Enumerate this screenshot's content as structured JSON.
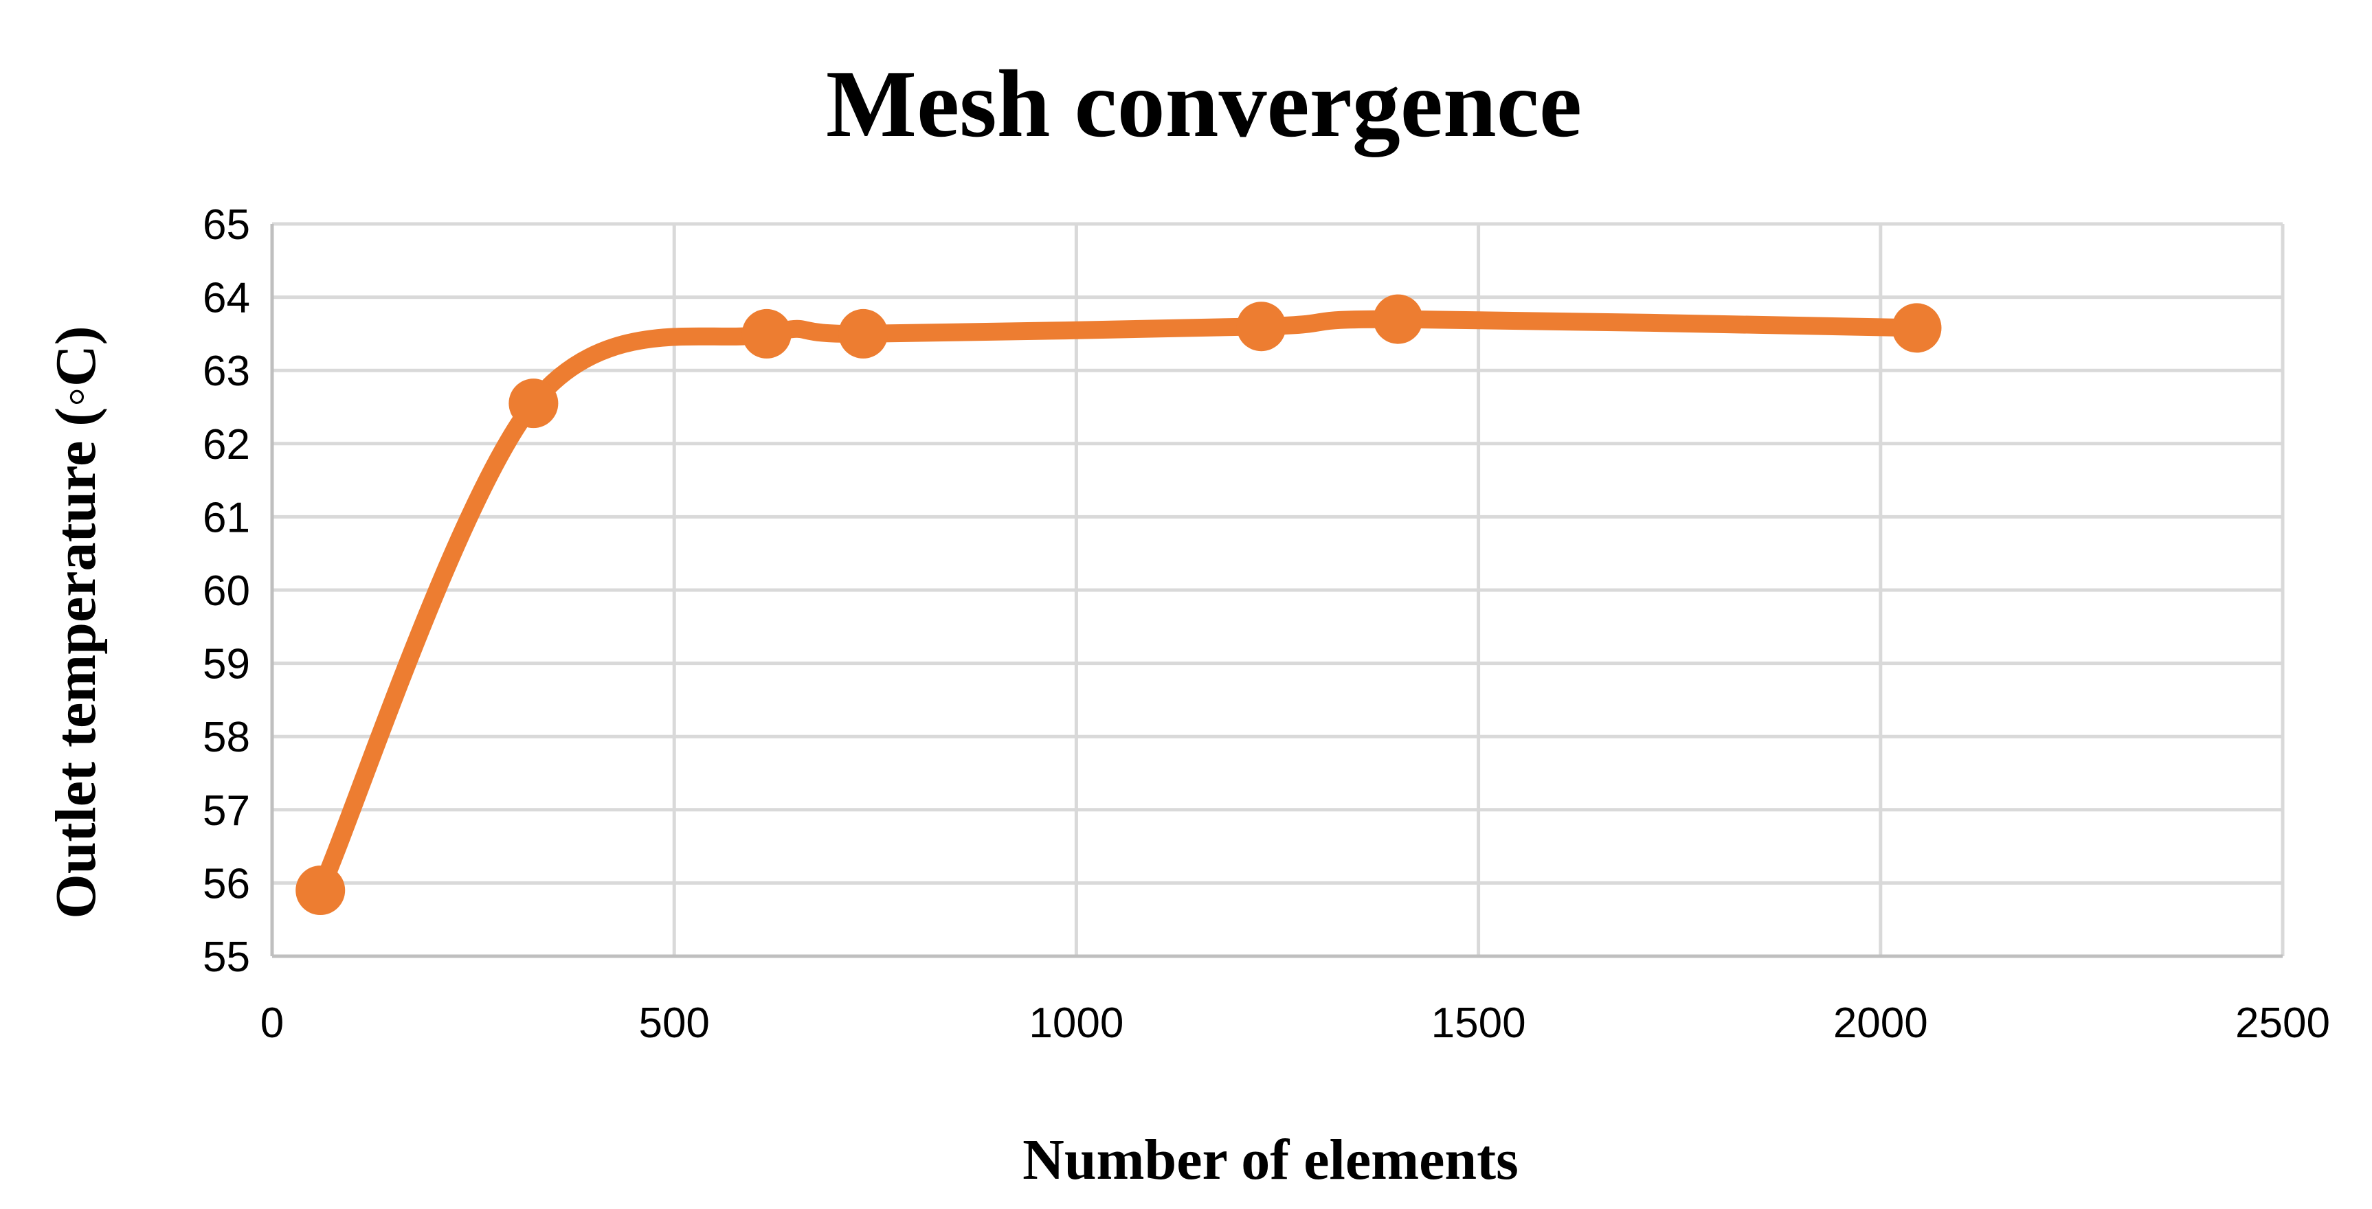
{
  "chart_data": {
    "type": "line",
    "title": "Mesh convergence",
    "xlabel": "Number of elements",
    "ylabel": "Outlet temperature (◦C)",
    "xlim": [
      0,
      2500
    ],
    "ylim": [
      55,
      65
    ],
    "xticks": [
      0,
      500,
      1000,
      1500,
      2000,
      2500
    ],
    "yticks": [
      55,
      56,
      57,
      58,
      59,
      60,
      61,
      62,
      63,
      64,
      65
    ],
    "grid": true,
    "legend": "none",
    "smooth": true,
    "series": [
      {
        "color": "#ed7d31",
        "points": [
          {
            "x": 60,
            "y": 55.9
          },
          {
            "x": 325,
            "y": 62.55
          },
          {
            "x": 615,
            "y": 63.5
          },
          {
            "x": 735,
            "y": 63.5
          },
          {
            "x": 1230,
            "y": 63.6
          },
          {
            "x": 1400,
            "y": 63.7
          },
          {
            "x": 2045,
            "y": 63.58
          }
        ]
      }
    ]
  }
}
